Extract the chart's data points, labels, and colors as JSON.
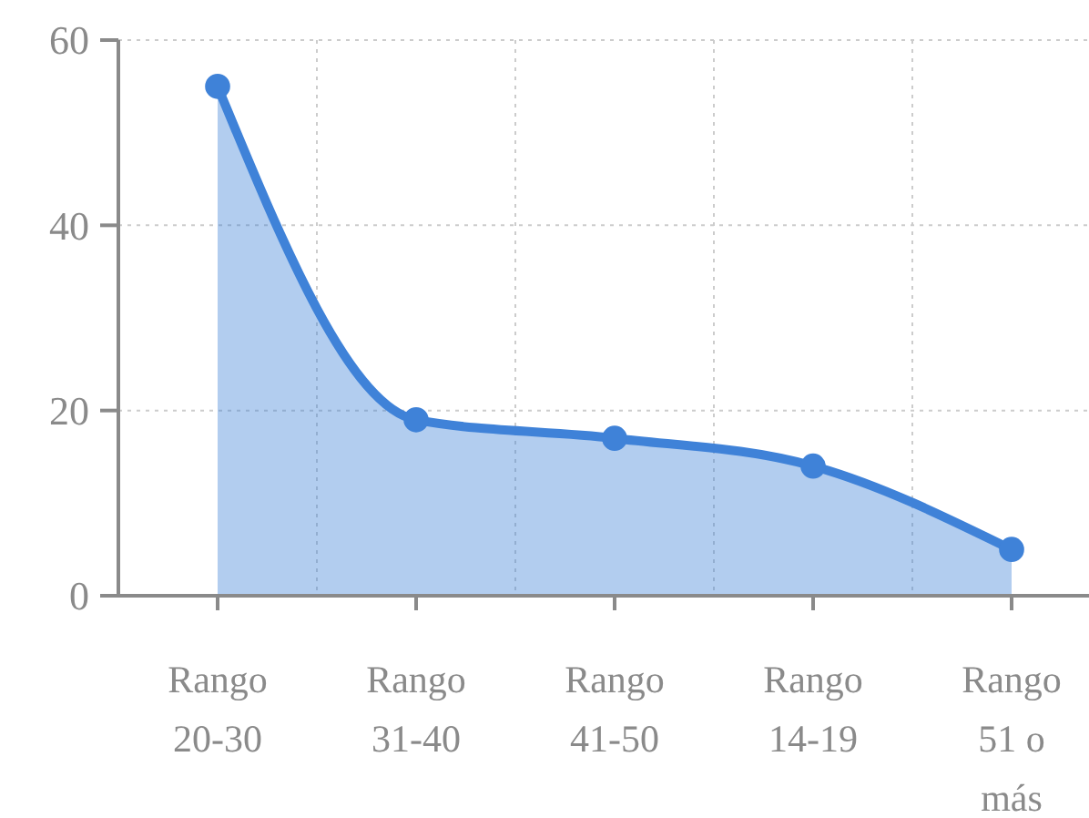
{
  "chart_data": {
    "type": "area",
    "categories": [
      "Rango 20-30",
      "Rango 31-40",
      "Rango 41-50",
      "Rango 14-19",
      "Rango 51 o más"
    ],
    "series": [
      {
        "color": "#3f82d8",
        "values": [
          55,
          19,
          17,
          14,
          5
        ]
      }
    ],
    "ylim": [
      0,
      60
    ],
    "yticks": [
      0,
      20,
      40,
      60
    ],
    "grid": true,
    "marker": "circle"
  }
}
